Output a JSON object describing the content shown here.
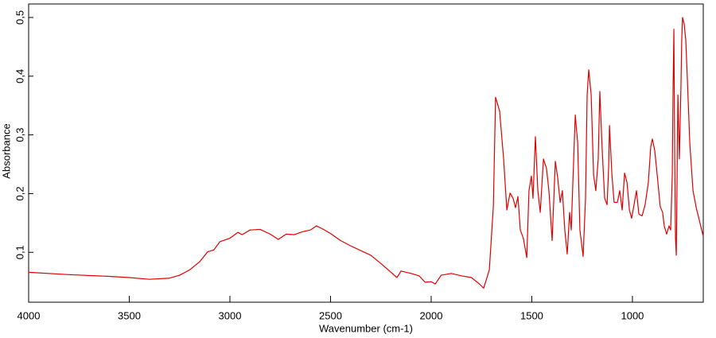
{
  "chart_data": {
    "type": "line",
    "xlabel": "Wavenumber (cm-1)",
    "ylabel": "Absorbance",
    "xlim": [
      4000,
      648
    ],
    "ylim": [
      0.015,
      0.523
    ],
    "xticks": [
      4000,
      3500,
      3000,
      2500,
      2000,
      1500,
      1000
    ],
    "yticks": [
      {
        "value": 0.1,
        "label": "0,1"
      },
      {
        "value": 0.2,
        "label": "0,2"
      },
      {
        "value": 0.3,
        "label": "0,3"
      },
      {
        "value": 0.4,
        "label": "0,4"
      },
      {
        "value": 0.5,
        "label": "0,5"
      }
    ],
    "grid": false,
    "series": [
      {
        "color": "#e00000",
        "x": [
          4000,
          3800,
          3600,
          3500,
          3400,
          3300,
          3250,
          3200,
          3150,
          3110,
          3080,
          3050,
          3000,
          2960,
          2940,
          2900,
          2850,
          2800,
          2760,
          2720,
          2680,
          2640,
          2600,
          2570,
          2540,
          2500,
          2450,
          2400,
          2350,
          2300,
          2250,
          2200,
          2170,
          2150,
          2100,
          2060,
          2030,
          2000,
          1980,
          1950,
          1900,
          1850,
          1800,
          1760,
          1739,
          1711,
          1691,
          1680,
          1660,
          1640,
          1624,
          1608,
          1593,
          1581,
          1569,
          1557,
          1542,
          1525,
          1514,
          1502,
          1494,
          1482,
          1470,
          1458,
          1442,
          1427,
          1415,
          1399,
          1383,
          1371,
          1359,
          1348,
          1336,
          1324,
          1312,
          1304,
          1296,
          1284,
          1272,
          1261,
          1245,
          1233,
          1225,
          1217,
          1205,
          1193,
          1182,
          1170,
          1162,
          1150,
          1138,
          1126,
          1118,
          1114,
          1102,
          1091,
          1075,
          1063,
          1051,
          1039,
          1027,
          1015,
          1004,
          992,
          980,
          968,
          952,
          937,
          921,
          909,
          901,
          889,
          877,
          862,
          850,
          842,
          830,
          818,
          810,
          802,
          798,
          794,
          790,
          786,
          782,
          774,
          767,
          759,
          755,
          751,
          743,
          735,
          727,
          715,
          699,
          683,
          648
        ],
        "values": [
          0.066,
          0.062,
          0.059,
          0.057,
          0.054,
          0.056,
          0.061,
          0.07,
          0.084,
          0.101,
          0.104,
          0.118,
          0.124,
          0.134,
          0.13,
          0.138,
          0.139,
          0.131,
          0.122,
          0.131,
          0.13,
          0.135,
          0.138,
          0.145,
          0.14,
          0.132,
          0.12,
          0.111,
          0.103,
          0.095,
          0.081,
          0.066,
          0.057,
          0.068,
          0.064,
          0.06,
          0.049,
          0.05,
          0.046,
          0.061,
          0.064,
          0.06,
          0.057,
          0.046,
          0.039,
          0.07,
          0.178,
          0.364,
          0.341,
          0.259,
          0.172,
          0.201,
          0.192,
          0.176,
          0.195,
          0.138,
          0.124,
          0.091,
          0.205,
          0.23,
          0.192,
          0.297,
          0.205,
          0.168,
          0.259,
          0.243,
          0.205,
          0.12,
          0.255,
          0.226,
          0.185,
          0.205,
          0.138,
          0.097,
          0.168,
          0.138,
          0.219,
          0.334,
          0.286,
          0.138,
          0.093,
          0.192,
          0.368,
          0.411,
          0.368,
          0.232,
          0.205,
          0.259,
          0.374,
          0.273,
          0.192,
          0.181,
          0.246,
          0.316,
          0.232,
          0.185,
          0.185,
          0.205,
          0.172,
          0.235,
          0.219,
          0.172,
          0.158,
          0.181,
          0.205,
          0.165,
          0.162,
          0.181,
          0.219,
          0.28,
          0.293,
          0.273,
          0.232,
          0.178,
          0.168,
          0.145,
          0.131,
          0.145,
          0.138,
          0.232,
          0.381,
          0.48,
          0.259,
          0.124,
          0.095,
          0.368,
          0.259,
          0.381,
          0.462,
          0.5,
          0.489,
          0.462,
          0.395,
          0.286,
          0.205,
          0.176,
          0.127
        ]
      }
    ]
  }
}
